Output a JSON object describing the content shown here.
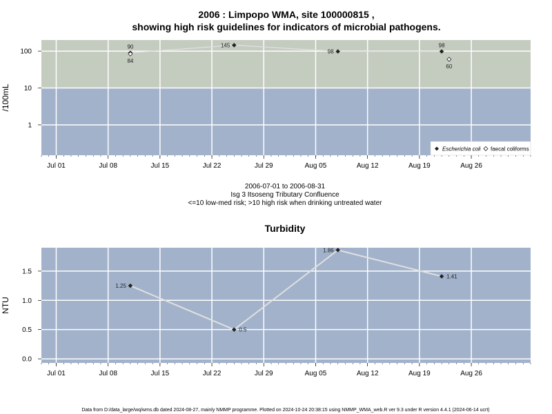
{
  "header": {
    "title_line1": "2006 : Limpopo WMA, site 100000815 ,",
    "title_line2": "showing high risk guidelines for indicators of microbial pathogens."
  },
  "middle": {
    "date_range": "2006-07-01 to 2006-08-31",
    "site_name": "Isg 3 Itsoseng Tributary Confluence",
    "risk_note": "<=10 low-med risk; >10 high risk when drinking untreated water"
  },
  "footer": {
    "text": "Data from D:/data_large/wq/wms.db dated 2024-08-27, mainly NMMP programme. Plotted on 2024-10-24 20:38:15 using NMMP_WMA_web.R ver 9.3 under R version 4.4.1 (2024-06-14 ucrt)"
  },
  "colors": {
    "high_risk_band": "#c4cbbf",
    "low_risk_band": "#a2b2cb",
    "grid": "#ffffff",
    "series_line": "#e0e0e0",
    "marker": "#222222"
  },
  "chart_data": [
    {
      "type": "line",
      "title": "",
      "ylabel": "/100mL",
      "y_scale": "log",
      "ylim": [
        0.15,
        200
      ],
      "xlim": [
        "2006-06-29",
        "2006-09-03"
      ],
      "threshold": 10,
      "x_ticks": [
        "2006-07-01",
        "2006-07-08",
        "2006-07-15",
        "2006-07-22",
        "2006-07-29",
        "2006-08-05",
        "2006-08-12",
        "2006-08-19",
        "2006-08-26"
      ],
      "x_tick_labels": [
        "Jul 01",
        "Jul 08",
        "Jul 15",
        "Jul 22",
        "Jul 29",
        "Aug 05",
        "Aug 12",
        "Aug 19",
        "Aug 26"
      ],
      "y_ticks": [
        1,
        10,
        100
      ],
      "y_tick_labels": [
        "1",
        "10",
        "100"
      ],
      "grid": true,
      "legend": "bottom-right",
      "series": [
        {
          "name": "Escherichia coli",
          "marker": "filled-diamond",
          "x": [
            "2006-07-11",
            "2006-07-25",
            "2006-08-08",
            "2006-08-22"
          ],
          "y": [
            90,
            145,
            98,
            98
          ],
          "labels": [
            "90",
            "145",
            "98",
            "98"
          ]
        },
        {
          "name": "faecal coliforms",
          "marker": "open-diamond",
          "x": [
            "2006-07-11",
            "2006-08-23"
          ],
          "y": [
            84,
            60
          ],
          "labels": [
            "84",
            "60"
          ]
        }
      ]
    },
    {
      "type": "line",
      "title": "Turbidity",
      "ylabel": "NTU",
      "ylim": [
        -0.07,
        1.9
      ],
      "xlim": [
        "2006-06-29",
        "2006-09-03"
      ],
      "x_ticks": [
        "2006-07-01",
        "2006-07-08",
        "2006-07-15",
        "2006-07-22",
        "2006-07-29",
        "2006-08-05",
        "2006-08-12",
        "2006-08-19",
        "2006-08-26"
      ],
      "x_tick_labels": [
        "Jul 01",
        "Jul 08",
        "Jul 15",
        "Jul 22",
        "Jul 29",
        "Aug 05",
        "Aug 12",
        "Aug 19",
        "Aug 26"
      ],
      "y_ticks": [
        0,
        0.5,
        1,
        1.5
      ],
      "y_tick_labels": [
        "0.0",
        "0.5",
        "1.0",
        "1.5"
      ],
      "grid": true,
      "series": [
        {
          "marker": "filled-diamond",
          "x": [
            "2006-07-11",
            "2006-07-25",
            "2006-08-08",
            "2006-08-22"
          ],
          "y": [
            1.25,
            0.5,
            1.86,
            1.41
          ],
          "labels": [
            "1.25",
            "0.5",
            "1.86",
            "1.41"
          ]
        }
      ]
    }
  ]
}
